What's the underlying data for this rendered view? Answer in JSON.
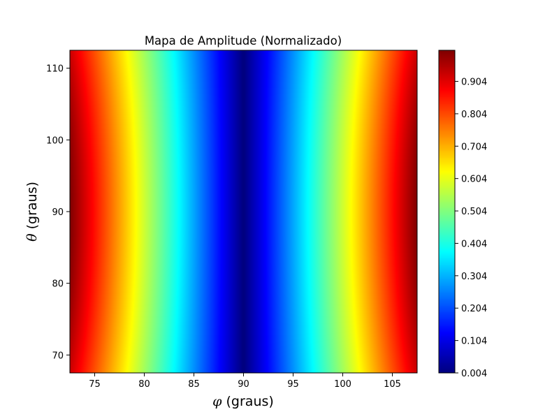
{
  "chart_data": {
    "type": "heatmap",
    "title": "Mapa de Amplitude (Normalizado)",
    "xlabel": {
      "symbol": "φ",
      "text": " (graus)"
    },
    "ylabel": {
      "symbol": "θ",
      "text": " (graus)"
    },
    "xlim": [
      72.5,
      107.5
    ],
    "ylim": [
      67.5,
      112.5
    ],
    "xticks": [
      75,
      80,
      85,
      90,
      95,
      100,
      105
    ],
    "yticks": [
      70,
      80,
      90,
      100,
      110
    ],
    "colormap": "jet",
    "color_range": [
      0.004,
      1.0
    ],
    "colorbar_ticks": [
      "0.004",
      "0.104",
      "0.204",
      "0.304",
      "0.404",
      "0.504",
      "0.604",
      "0.704",
      "0.804",
      "0.904"
    ],
    "colorbar_tick_values": [
      0.004,
      0.104,
      0.204,
      0.304,
      0.404,
      0.504,
      0.604,
      0.704,
      0.804,
      0.904
    ],
    "field": "normalized amplitude ≈ |cos φ · sin θ|, minimum at φ = 90°, maximum near φ = 72.5°/107.5° at θ = 90°",
    "grid": false
  }
}
